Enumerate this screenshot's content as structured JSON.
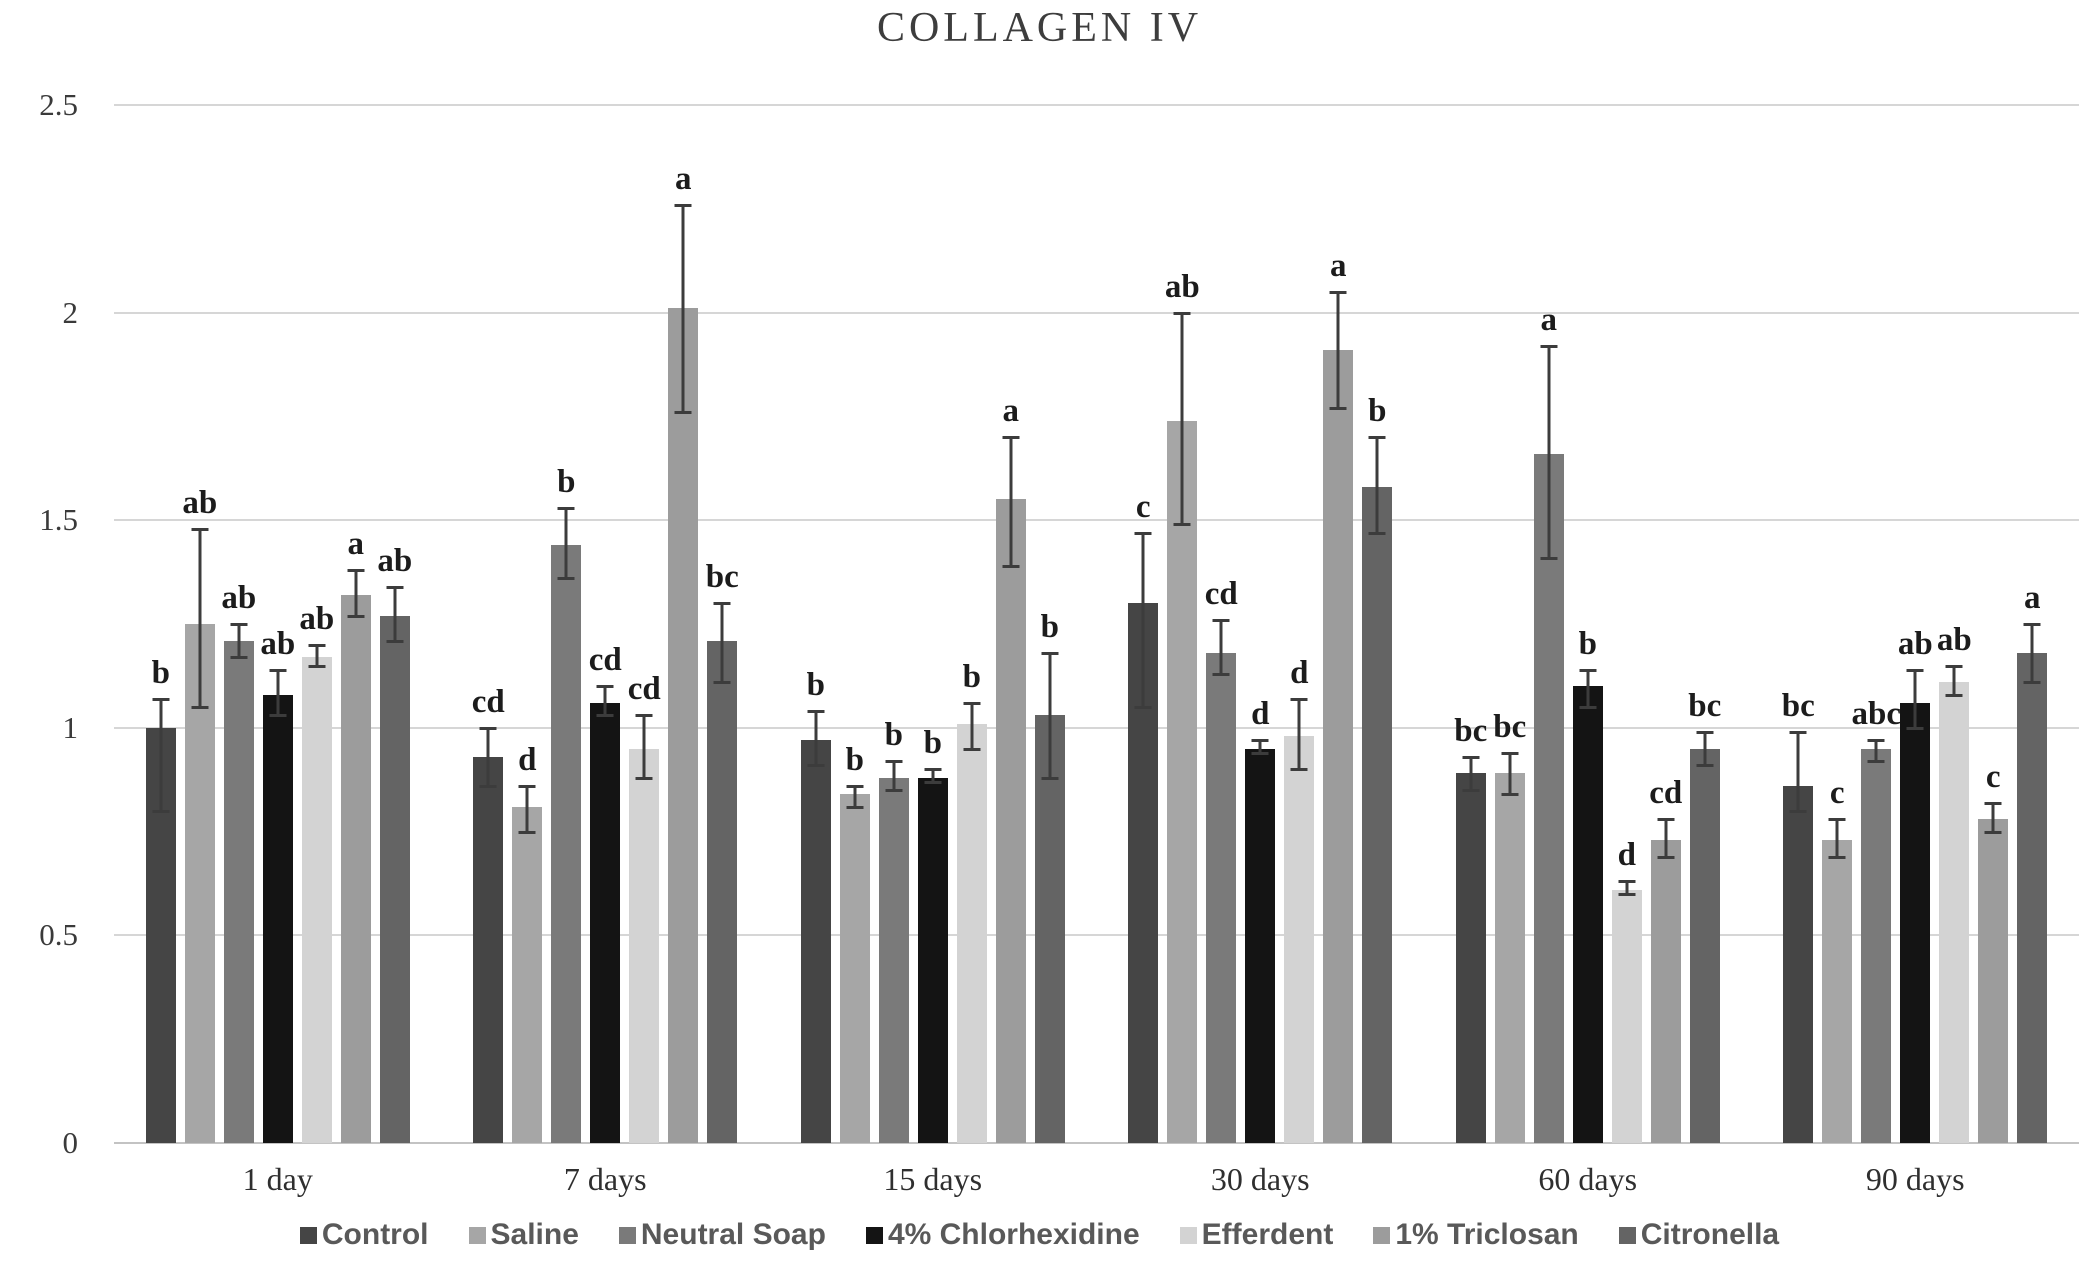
{
  "title": "COLLAGEN IV",
  "chart_data": {
    "type": "bar",
    "title": "COLLAGEN IV",
    "categories": [
      "1 day",
      "7 days",
      "15 days",
      "30 days",
      "60 days",
      "90 days"
    ],
    "ylim": [
      0,
      2.5
    ],
    "ytick_values": [
      0,
      0.5,
      1,
      1.5,
      2,
      2.5
    ],
    "ytick_labels": [
      "0",
      "0.5",
      "1",
      "1.5",
      "2",
      "2.5"
    ],
    "grid": true,
    "legend_position": "bottom",
    "error_bars": true,
    "series": [
      {
        "name": "Control",
        "color": "#454545",
        "values": [
          1.0,
          0.93,
          0.97,
          1.3,
          0.89,
          0.86
        ],
        "err_high": [
          1.07,
          1.0,
          1.04,
          1.47,
          0.93,
          0.99
        ],
        "err_low": [
          0.8,
          0.86,
          0.91,
          1.05,
          0.85,
          0.8
        ],
        "labels": [
          "b",
          "cd",
          "b",
          "c",
          "bc",
          "bc"
        ]
      },
      {
        "name": "Saline",
        "color": "#a6a6a6",
        "values": [
          1.25,
          0.81,
          0.84,
          1.74,
          0.89,
          0.73
        ],
        "err_high": [
          1.48,
          0.86,
          0.86,
          2.0,
          0.94,
          0.78
        ],
        "err_low": [
          1.05,
          0.75,
          0.81,
          1.49,
          0.84,
          0.69
        ],
        "labels": [
          "ab",
          "d",
          "b",
          "ab",
          "bc",
          "c"
        ]
      },
      {
        "name": "Neutral Soap",
        "color": "#7a7a7a",
        "values": [
          1.21,
          1.44,
          0.88,
          1.18,
          1.66,
          0.95
        ],
        "err_high": [
          1.25,
          1.53,
          0.92,
          1.26,
          1.92,
          0.97
        ],
        "err_low": [
          1.17,
          1.36,
          0.85,
          1.13,
          1.41,
          0.92
        ],
        "labels": [
          "ab",
          "b",
          "b",
          "cd",
          "a",
          "abc"
        ]
      },
      {
        "name": "4% Chlorhexidine",
        "color": "#141414",
        "values": [
          1.08,
          1.06,
          0.88,
          0.95,
          1.1,
          1.06
        ],
        "err_high": [
          1.14,
          1.1,
          0.9,
          0.97,
          1.14,
          1.14
        ],
        "err_low": [
          1.03,
          1.03,
          0.87,
          0.94,
          1.05,
          1.0
        ],
        "labels": [
          "ab",
          "cd",
          "b",
          "d",
          "b",
          "ab"
        ]
      },
      {
        "name": "Efferdent",
        "color": "#d3d3d3",
        "values": [
          1.17,
          0.95,
          1.01,
          0.98,
          0.61,
          1.11
        ],
        "err_high": [
          1.2,
          1.03,
          1.06,
          1.07,
          0.63,
          1.15
        ],
        "err_low": [
          1.15,
          0.88,
          0.95,
          0.9,
          0.6,
          1.08
        ],
        "labels": [
          "ab",
          "cd",
          "b",
          "d",
          "d",
          "ab"
        ]
      },
      {
        "name": "1% Triclosan",
        "color": "#9c9c9c",
        "values": [
          1.32,
          2.01,
          1.55,
          1.91,
          0.73,
          0.78
        ],
        "err_high": [
          1.38,
          2.26,
          1.7,
          2.05,
          0.78,
          0.82
        ],
        "err_low": [
          1.27,
          1.76,
          1.39,
          1.77,
          0.69,
          0.75
        ],
        "labels": [
          "a",
          "a",
          "a",
          "a",
          "cd",
          "c"
        ]
      },
      {
        "name": "Citronella",
        "color": "#646464",
        "values": [
          1.27,
          1.21,
          1.03,
          1.58,
          0.95,
          1.18
        ],
        "err_high": [
          1.34,
          1.3,
          1.18,
          1.7,
          0.99,
          1.25
        ],
        "err_low": [
          1.21,
          1.11,
          0.88,
          1.47,
          0.91,
          1.11
        ],
        "labels": [
          "ab",
          "bc",
          "b",
          "b",
          "bc",
          "a"
        ]
      }
    ]
  }
}
